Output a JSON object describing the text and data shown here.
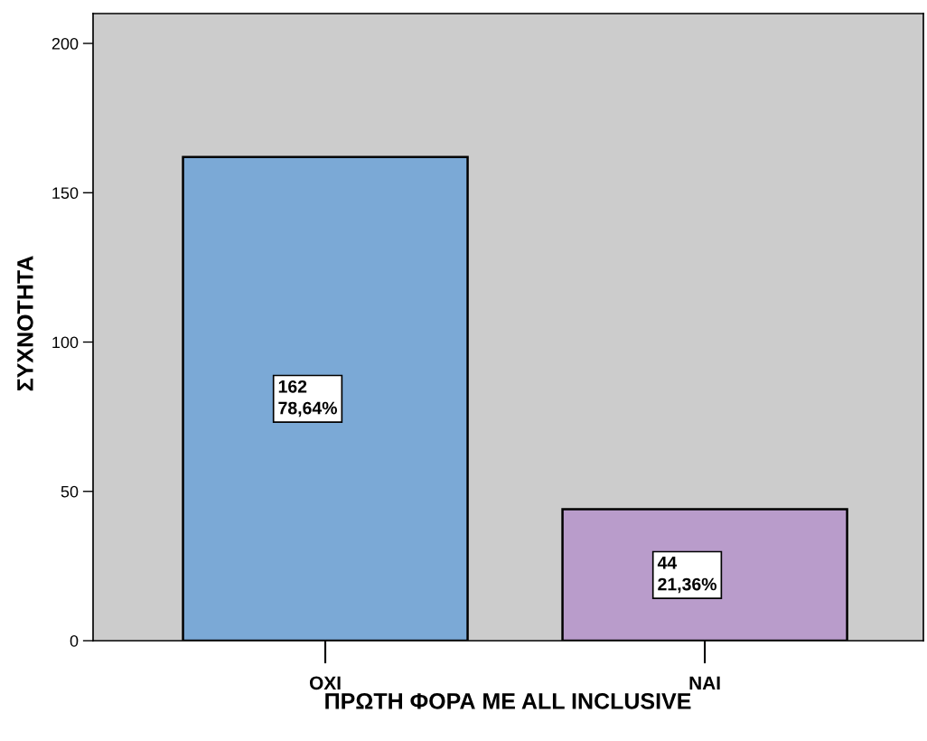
{
  "chart_data": {
    "type": "bar",
    "xlabel": "ΠΡΩΤΗ ΦΟΡΑ ΜΕ ALL INCLUSIVE",
    "ylabel": "ΣΥΧΝΟΤΗΤΑ",
    "categories": [
      "OXI",
      "NAI"
    ],
    "values": [
      162,
      44
    ],
    "colors": [
      "#7ba9d6",
      "#b99ccb"
    ],
    "value_labels": [
      "162\n78,64%",
      "44\n21,36%"
    ],
    "ylim": [
      0,
      210
    ],
    "yticks": [
      0,
      50,
      100,
      150,
      200
    ],
    "grid": false,
    "legend": false
  }
}
